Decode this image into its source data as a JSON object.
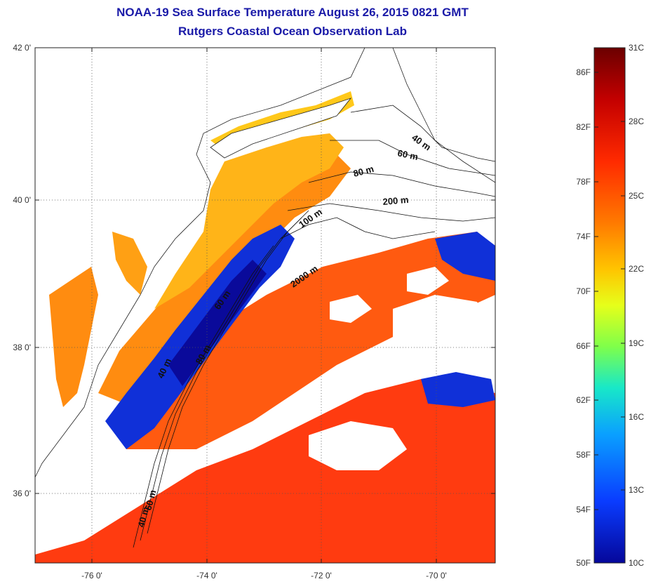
{
  "title": "NOAA-19 Sea Surface Temperature August 26, 2015 0821 GMT",
  "subtitle": "Rutgers Coastal Ocean Observation Lab",
  "map": {
    "lat_labels": [
      "42 0'",
      "40 0'",
      "38 0'",
      "36 0'"
    ],
    "lon_labels": [
      "-76 0'",
      "-74 0'",
      "-72 0'",
      "-70 0'"
    ],
    "contour_labels": [
      "40 m",
      "60 m",
      "80 m",
      "200 m",
      "100 m",
      "2000 m",
      "60 m",
      "80 m",
      "40 m",
      "40 m",
      "60 m"
    ],
    "land_color": "#ffffff",
    "cloud_color": "#ffffff"
  },
  "colorbar": {
    "fahrenheit_labels": [
      "86F",
      "82F",
      "78F",
      "74F",
      "70F",
      "66F",
      "62F",
      "58F",
      "54F",
      "50F"
    ],
    "celsius_labels": [
      "31C",
      "28C",
      "25C",
      "22C",
      "19C",
      "16C",
      "13C",
      "10C"
    ],
    "colors": [
      "#6b0000",
      "#c30000",
      "#ff2a00",
      "#ff7a00",
      "#ffc400",
      "#e6ff1a",
      "#7fff4a",
      "#18e8c8",
      "#0aa0ff",
      "#0a3cff",
      "#05079a"
    ]
  }
}
